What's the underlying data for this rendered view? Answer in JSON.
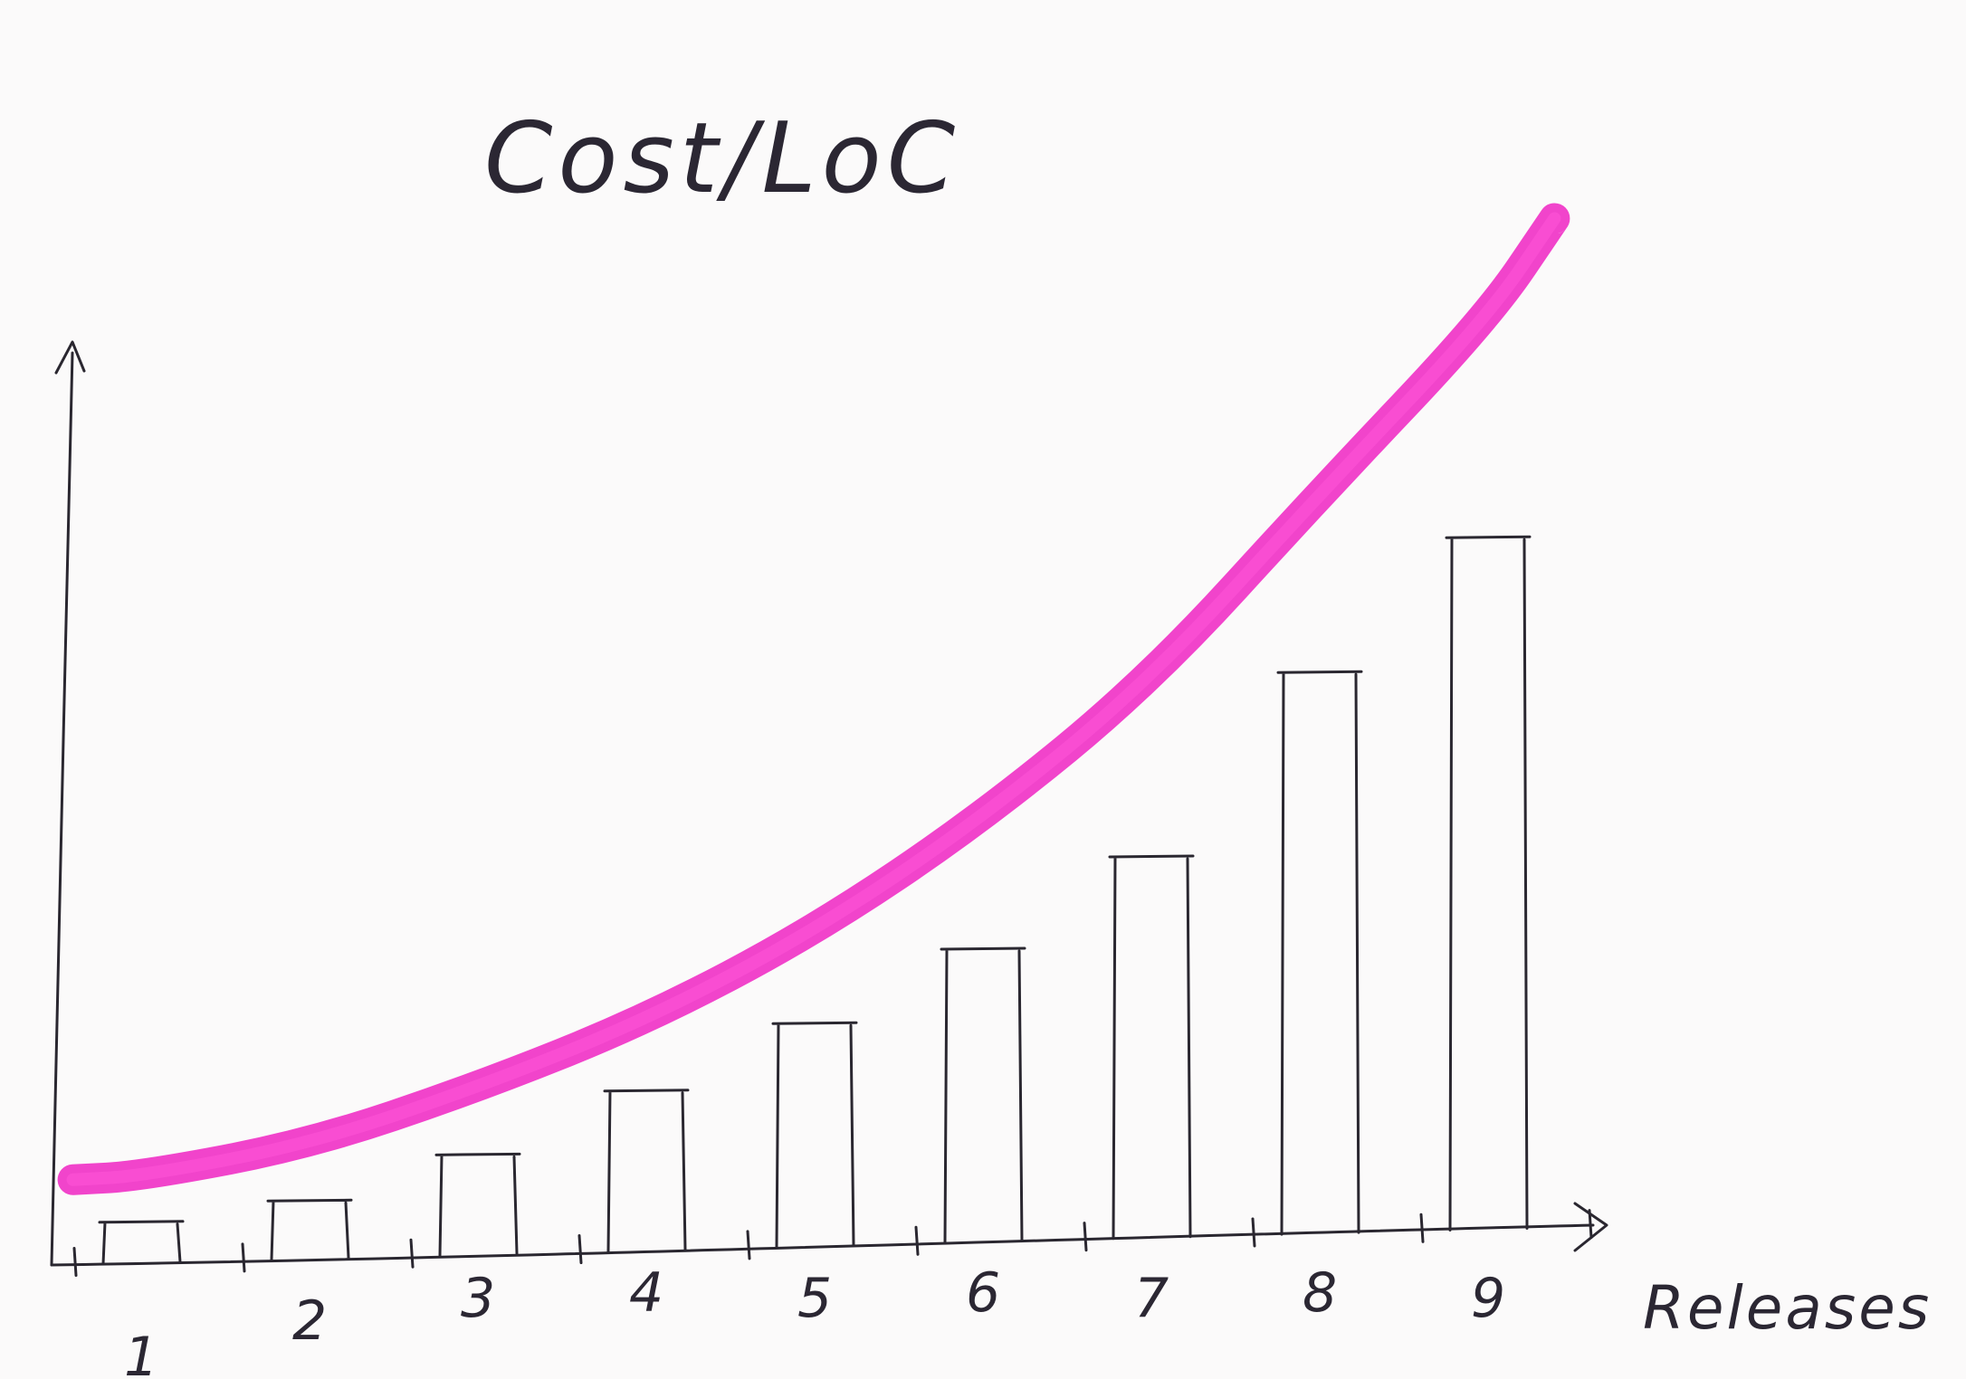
{
  "chart_data": {
    "type": "bar",
    "title": "Cost/LoC",
    "xlabel": "Releases",
    "ylabel": "",
    "categories": [
      "1",
      "2",
      "3",
      "4",
      "5",
      "6",
      "7",
      "8",
      "9"
    ],
    "values": [
      1,
      1.6,
      2.9,
      4.7,
      6.6,
      8.7,
      11.3,
      16.5,
      20.3
    ],
    "ylim": [
      0,
      30
    ],
    "grid": false,
    "legend": "none",
    "trend_curve": {
      "x": [
        0.6,
        1,
        2,
        3,
        4,
        5,
        6,
        7,
        8,
        9,
        9.4
      ],
      "y": [
        2.2,
        2.3,
        3.2,
        4.8,
        6.7,
        9.2,
        12.4,
        16.3,
        21.5,
        26.5,
        29.3
      ]
    },
    "colors": {
      "ink": "#2a2730",
      "highlight": "#f03ac8",
      "paper": "#fbfafa"
    }
  }
}
